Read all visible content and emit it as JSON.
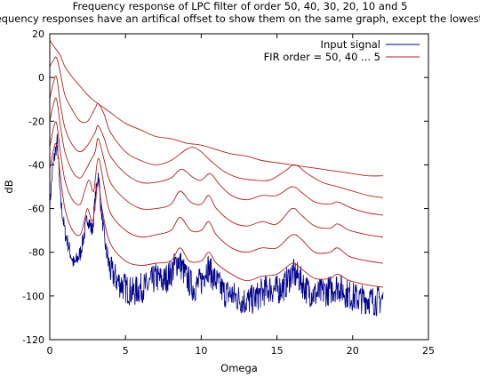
{
  "chart_data": {
    "type": "line",
    "title": "Frequency response of LPC filter of order 50, 40, 30, 20, 10 and 5",
    "subtitle": "All frequency responses have an artifical offset to show them on the same graph, except the lowest one.",
    "xlabel": "Omega",
    "ylabel": "dB",
    "xlim": [
      0,
      25
    ],
    "ylim": [
      -120,
      20
    ],
    "x_ticks": [
      0,
      5,
      10,
      15,
      20,
      25
    ],
    "y_ticks": [
      -120,
      -100,
      -80,
      -60,
      -40,
      -20,
      0,
      20
    ],
    "x_tick_labels": [
      "0",
      "5",
      "10",
      "15",
      "20",
      "25"
    ],
    "y_tick_labels": [
      "-120",
      "-100",
      "-80",
      "-60",
      "-40",
      "-20",
      "0",
      "20"
    ],
    "grid": false,
    "legend_position": "top-right",
    "series": [
      {
        "name": "Input signal",
        "color": "#00008b",
        "style": "noisy-spectrum",
        "points": [
          [
            0.0,
            -58
          ],
          [
            0.2,
            -40
          ],
          [
            0.4,
            -32
          ],
          [
            0.5,
            -28
          ],
          [
            0.7,
            -55
          ],
          [
            1.0,
            -70
          ],
          [
            1.3,
            -78
          ],
          [
            1.6,
            -85
          ],
          [
            2.0,
            -80
          ],
          [
            2.3,
            -70
          ],
          [
            2.5,
            -63
          ],
          [
            2.8,
            -70
          ],
          [
            3.0,
            -55
          ],
          [
            3.2,
            -43
          ],
          [
            3.4,
            -60
          ],
          [
            3.7,
            -78
          ],
          [
            4.0,
            -87
          ],
          [
            4.5,
            -92
          ],
          [
            5.0,
            -95
          ],
          [
            5.5,
            -97
          ],
          [
            6.0,
            -95
          ],
          [
            6.5,
            -94
          ],
          [
            7.0,
            -90
          ],
          [
            7.5,
            -92
          ],
          [
            8.0,
            -88
          ],
          [
            8.5,
            -82
          ],
          [
            9.0,
            -90
          ],
          [
            9.5,
            -95
          ],
          [
            10.0,
            -92
          ],
          [
            10.4,
            -85
          ],
          [
            10.8,
            -90
          ],
          [
            11.5,
            -97
          ],
          [
            12.0,
            -98
          ],
          [
            12.5,
            -100
          ],
          [
            13.0,
            -101
          ],
          [
            13.5,
            -100
          ],
          [
            14.0,
            -97
          ],
          [
            14.5,
            -95
          ],
          [
            15.0,
            -96
          ],
          [
            15.5,
            -94
          ],
          [
            16.0,
            -88
          ],
          [
            16.4,
            -90
          ],
          [
            17.0,
            -96
          ],
          [
            17.5,
            -98
          ],
          [
            18.0,
            -97
          ],
          [
            18.5,
            -96
          ],
          [
            19.0,
            -94
          ],
          [
            19.5,
            -97
          ],
          [
            20.0,
            -99
          ],
          [
            20.5,
            -100
          ],
          [
            21.0,
            -100
          ],
          [
            21.5,
            -101
          ],
          [
            22.0,
            -100
          ]
        ]
      },
      {
        "name": "FIR order = 50, 40 ... 5",
        "color": "#b22222",
        "curves": [
          [
            [
              0.0,
              -42
            ],
            [
              0.25,
              -33
            ],
            [
              0.45,
              -31
            ],
            [
              0.7,
              -45
            ],
            [
              1.0,
              -60
            ],
            [
              1.5,
              -70
            ],
            [
              2.0,
              -72
            ],
            [
              2.3,
              -65
            ],
            [
              2.5,
              -60
            ],
            [
              2.8,
              -66
            ],
            [
              3.0,
              -58
            ],
            [
              3.2,
              -48
            ],
            [
              3.5,
              -62
            ],
            [
              4.0,
              -76
            ],
            [
              5.0,
              -84
            ],
            [
              6.0,
              -86
            ],
            [
              7.0,
              -85
            ],
            [
              8.0,
              -84
            ],
            [
              8.6,
              -78
            ],
            [
              9.2,
              -84
            ],
            [
              10.0,
              -84
            ],
            [
              10.5,
              -80
            ],
            [
              11.0,
              -85
            ],
            [
              12.0,
              -90
            ],
            [
              13.0,
              -93
            ],
            [
              14.0,
              -91
            ],
            [
              15.0,
              -90
            ],
            [
              16.0,
              -85
            ],
            [
              16.5,
              -87
            ],
            [
              17.5,
              -92
            ],
            [
              18.5,
              -92
            ],
            [
              19.0,
              -90
            ],
            [
              19.8,
              -93
            ],
            [
              21.0,
              -95
            ],
            [
              22.0,
              -96
            ]
          ],
          [
            [
              0.0,
              -32
            ],
            [
              0.25,
              -23
            ],
            [
              0.45,
              -21
            ],
            [
              0.7,
              -34
            ],
            [
              1.0,
              -47
            ],
            [
              1.5,
              -56
            ],
            [
              2.0,
              -58
            ],
            [
              2.3,
              -52
            ],
            [
              2.6,
              -47
            ],
            [
              2.9,
              -52
            ],
            [
              3.2,
              -37
            ],
            [
              3.6,
              -50
            ],
            [
              4.0,
              -62
            ],
            [
              5.0,
              -70
            ],
            [
              6.0,
              -73
            ],
            [
              7.0,
              -72
            ],
            [
              8.0,
              -70
            ],
            [
              8.6,
              -64
            ],
            [
              9.3,
              -70
            ],
            [
              10.0,
              -70
            ],
            [
              10.5,
              -66
            ],
            [
              11.0,
              -72
            ],
            [
              12.0,
              -78
            ],
            [
              13.0,
              -80
            ],
            [
              14.0,
              -78
            ],
            [
              15.0,
              -78
            ],
            [
              16.0,
              -72
            ],
            [
              16.6,
              -74
            ],
            [
              17.5,
              -80
            ],
            [
              18.5,
              -80
            ],
            [
              19.0,
              -78
            ],
            [
              19.8,
              -82
            ],
            [
              21.0,
              -84
            ],
            [
              22.0,
              -85
            ]
          ],
          [
            [
              0.0,
              -20
            ],
            [
              0.25,
              -12
            ],
            [
              0.45,
              -10
            ],
            [
              0.7,
              -22
            ],
            [
              1.0,
              -34
            ],
            [
              1.5,
              -43
            ],
            [
              2.0,
              -46
            ],
            [
              2.4,
              -42
            ],
            [
              2.7,
              -38
            ],
            [
              3.0,
              -34
            ],
            [
              3.2,
              -28
            ],
            [
              3.6,
              -38
            ],
            [
              4.0,
              -48
            ],
            [
              5.0,
              -56
            ],
            [
              6.0,
              -60
            ],
            [
              7.0,
              -60
            ],
            [
              8.0,
              -58
            ],
            [
              8.6,
              -52
            ],
            [
              9.3,
              -57
            ],
            [
              10.0,
              -58
            ],
            [
              10.5,
              -54
            ],
            [
              11.0,
              -60
            ],
            [
              12.0,
              -66
            ],
            [
              13.0,
              -68
            ],
            [
              14.0,
              -66
            ],
            [
              15.0,
              -67
            ],
            [
              16.0,
              -60
            ],
            [
              16.6,
              -63
            ],
            [
              17.5,
              -68
            ],
            [
              18.5,
              -69
            ],
            [
              19.0,
              -67
            ],
            [
              19.8,
              -70
            ],
            [
              21.0,
              -72
            ],
            [
              22.0,
              -73
            ]
          ],
          [
            [
              0.0,
              -10
            ],
            [
              0.25,
              -2
            ],
            [
              0.45,
              0
            ],
            [
              0.7,
              -12
            ],
            [
              1.0,
              -23
            ],
            [
              1.5,
              -31
            ],
            [
              2.0,
              -34
            ],
            [
              2.5,
              -31
            ],
            [
              3.0,
              -25
            ],
            [
              3.2,
              -22
            ],
            [
              3.6,
              -28
            ],
            [
              4.0,
              -36
            ],
            [
              5.0,
              -44
            ],
            [
              6.0,
              -48
            ],
            [
              7.0,
              -48
            ],
            [
              8.0,
              -46
            ],
            [
              8.7,
              -42
            ],
            [
              9.5,
              -46
            ],
            [
              10.0,
              -47
            ],
            [
              10.6,
              -44
            ],
            [
              11.2,
              -49
            ],
            [
              12.0,
              -54
            ],
            [
              13.0,
              -56
            ],
            [
              14.0,
              -54
            ],
            [
              15.0,
              -54
            ],
            [
              16.0,
              -50
            ],
            [
              16.7,
              -53
            ],
            [
              17.5,
              -57
            ],
            [
              18.5,
              -58
            ],
            [
              19.0,
              -57
            ],
            [
              20.0,
              -60
            ],
            [
              21.0,
              -62
            ],
            [
              22.0,
              -63
            ]
          ],
          [
            [
              0.0,
              5
            ],
            [
              0.25,
              8
            ],
            [
              0.45,
              9
            ],
            [
              0.7,
              2
            ],
            [
              1.0,
              -8
            ],
            [
              1.5,
              -15
            ],
            [
              2.0,
              -20
            ],
            [
              2.5,
              -20
            ],
            [
              3.0,
              -14
            ],
            [
              3.2,
              -12
            ],
            [
              3.6,
              -17
            ],
            [
              4.0,
              -25
            ],
            [
              5.0,
              -34
            ],
            [
              6.0,
              -38
            ],
            [
              7.0,
              -40
            ],
            [
              8.0,
              -38
            ],
            [
              9.0,
              -33
            ],
            [
              9.5,
              -32
            ],
            [
              10.0,
              -34
            ],
            [
              10.6,
              -38
            ],
            [
              11.5,
              -43
            ],
            [
              12.5,
              -46
            ],
            [
              13.5,
              -47
            ],
            [
              14.5,
              -47
            ],
            [
              15.5,
              -43
            ],
            [
              16.2,
              -40
            ],
            [
              17.0,
              -44
            ],
            [
              18.0,
              -48
            ],
            [
              19.0,
              -50
            ],
            [
              20.0,
              -52
            ],
            [
              21.0,
              -54
            ],
            [
              22.0,
              -55
            ]
          ],
          [
            [
              0.0,
              17
            ],
            [
              0.3,
              14
            ],
            [
              0.7,
              10
            ],
            [
              1.0,
              5
            ],
            [
              1.5,
              0
            ],
            [
              2.0,
              -4
            ],
            [
              2.5,
              -8
            ],
            [
              3.0,
              -11
            ],
            [
              4.0,
              -16
            ],
            [
              5.0,
              -21
            ],
            [
              6.0,
              -24
            ],
            [
              7.0,
              -27
            ],
            [
              8.0,
              -28
            ],
            [
              9.0,
              -30
            ],
            [
              10.0,
              -31
            ],
            [
              11.0,
              -33
            ],
            [
              12.0,
              -35
            ],
            [
              13.0,
              -36
            ],
            [
              14.0,
              -38
            ],
            [
              15.0,
              -39
            ],
            [
              16.0,
              -40
            ],
            [
              17.0,
              -41
            ],
            [
              18.0,
              -42
            ],
            [
              19.0,
              -43
            ],
            [
              20.0,
              -44
            ],
            [
              21.0,
              -45
            ],
            [
              22.0,
              -45
            ]
          ]
        ]
      }
    ]
  }
}
